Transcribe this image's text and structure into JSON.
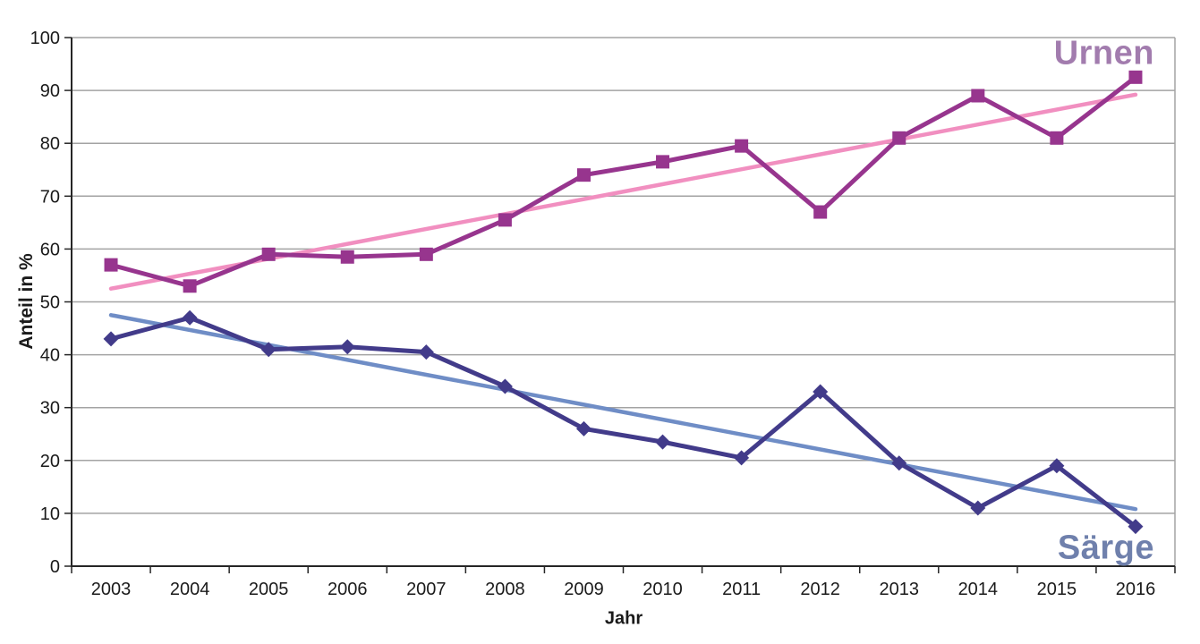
{
  "chart_data": {
    "type": "line",
    "title": "",
    "xlabel": "Jahr",
    "ylabel": "Anteil in %",
    "x": [
      2003,
      2004,
      2005,
      2006,
      2007,
      2008,
      2009,
      2010,
      2011,
      2012,
      2013,
      2014,
      2015,
      2016
    ],
    "ylim": [
      0,
      100
    ],
    "y_ticks": [
      0,
      10,
      20,
      30,
      40,
      50,
      60,
      70,
      80,
      90,
      100
    ],
    "grid": "horizontal gridlines on, grey; black left/bottom axes; grey right/top frame",
    "legend_position": "labels at line ends, right side",
    "series": [
      {
        "name": "Urnen",
        "marker": "square",
        "color": "#97358e",
        "label_color": "#a27cae",
        "values": [
          57,
          53,
          59,
          58.5,
          59,
          65.5,
          74,
          76.5,
          79.5,
          67,
          81,
          89,
          81,
          92.5
        ],
        "trend": {
          "color": "#f18fc0",
          "start": 52.5,
          "end": 89.2
        }
      },
      {
        "name": "Särge",
        "marker": "diamond",
        "color": "#423b8a",
        "label_color": "#6f80ac",
        "values": [
          43,
          47,
          41,
          41.5,
          40.5,
          34,
          26,
          23.5,
          20.5,
          33,
          19.5,
          11,
          19,
          7.5
        ],
        "trend": {
          "color": "#6f8dc6",
          "start": 47.5,
          "end": 10.8
        }
      }
    ],
    "colors": {
      "axis": "#262626",
      "grid": "#a3a3a3",
      "tick_text": "#1a1a1a",
      "background": "#ffffff"
    }
  }
}
